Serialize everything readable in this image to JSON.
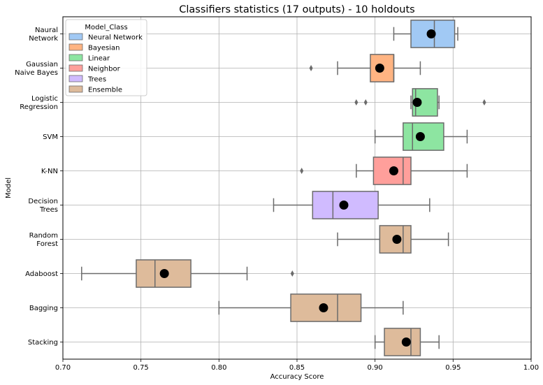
{
  "chart_data": {
    "type": "boxplot",
    "orientation": "horizontal",
    "title": "Classifiers statistics (17 outputs) - 10 holdouts",
    "xlabel": "Accuracy Score",
    "ylabel": "Model",
    "xlim": [
      0.7,
      1.0
    ],
    "xticks": [
      "0.70",
      "0.75",
      "0.80",
      "0.85",
      "0.90",
      "0.95",
      "1.00"
    ],
    "grid": true,
    "legend": {
      "title": "Model_Class",
      "placement": "top-left",
      "entries": [
        {
          "name": "Neural Network",
          "color": "#a1c9f4"
        },
        {
          "name": "Bayesian",
          "color": "#ffb482"
        },
        {
          "name": "Linear",
          "color": "#8de5a1"
        },
        {
          "name": "Neighbor",
          "color": "#ff9f9b"
        },
        {
          "name": "Trees",
          "color": "#d0bbff"
        },
        {
          "name": "Ensemble",
          "color": "#debb9b"
        }
      ]
    },
    "mean_marker_color": "#000000",
    "categories": [
      {
        "label": [
          "Naural",
          "Network"
        ],
        "class": "Neural Network",
        "whisker_low": 0.912,
        "q1": 0.923,
        "median": 0.938,
        "q3": 0.951,
        "whisker_high": 0.953,
        "mean": 0.936,
        "outliers": []
      },
      {
        "label": [
          "Gaussian",
          "Naive Bayes"
        ],
        "class": "Bayesian",
        "whisker_low": 0.876,
        "q1": 0.897,
        "median": 0.912,
        "q3": 0.912,
        "whisker_high": 0.929,
        "mean": 0.903,
        "outliers": [
          0.859
        ]
      },
      {
        "label": [
          "Logistic",
          "Regression"
        ],
        "class": "Linear",
        "whisker_low": 0.923,
        "q1": 0.924,
        "median": 0.926,
        "q3": 0.94,
        "whisker_high": 0.941,
        "mean": 0.927,
        "outliers": [
          0.888,
          0.894,
          0.97
        ]
      },
      {
        "label": [
          "SVM"
        ],
        "class": "Linear",
        "whisker_low": 0.9,
        "q1": 0.918,
        "median": 0.924,
        "q3": 0.944,
        "whisker_high": 0.959,
        "mean": 0.929,
        "outliers": []
      },
      {
        "label": [
          "K-NN"
        ],
        "class": "Neighbor",
        "whisker_low": 0.888,
        "q1": 0.899,
        "median": 0.918,
        "q3": 0.923,
        "whisker_high": 0.959,
        "mean": 0.912,
        "outliers": [
          0.853
        ]
      },
      {
        "label": [
          "Decision",
          "Trees"
        ],
        "class": "Trees",
        "whisker_low": 0.835,
        "q1": 0.86,
        "median": 0.873,
        "q3": 0.902,
        "whisker_high": 0.935,
        "mean": 0.88,
        "outliers": []
      },
      {
        "label": [
          "Random",
          "Forest"
        ],
        "class": "Ensemble",
        "whisker_low": 0.876,
        "q1": 0.903,
        "median": 0.918,
        "q3": 0.923,
        "whisker_high": 0.947,
        "mean": 0.914,
        "outliers": []
      },
      {
        "label": [
          "Adaboost"
        ],
        "class": "Ensemble",
        "whisker_low": 0.712,
        "q1": 0.747,
        "median": 0.759,
        "q3": 0.782,
        "whisker_high": 0.818,
        "mean": 0.765,
        "outliers": [
          0.847
        ]
      },
      {
        "label": [
          "Bagging"
        ],
        "class": "Ensemble",
        "whisker_low": 0.8,
        "q1": 0.846,
        "median": 0.876,
        "q3": 0.891,
        "whisker_high": 0.918,
        "mean": 0.867,
        "outliers": []
      },
      {
        "label": [
          "Stacking"
        ],
        "class": "Ensemble",
        "whisker_low": 0.9,
        "q1": 0.906,
        "median": 0.923,
        "q3": 0.929,
        "whisker_high": 0.941,
        "mean": 0.92,
        "outliers": []
      }
    ]
  }
}
